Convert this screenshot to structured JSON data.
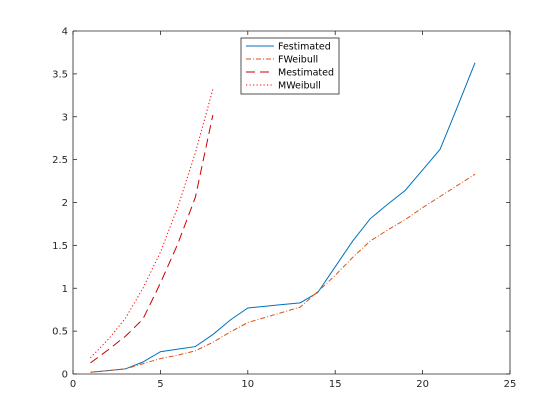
{
  "chart_data": {
    "type": "line",
    "title": "",
    "xlabel": "",
    "ylabel": "",
    "xlim": [
      0,
      25
    ],
    "ylim": [
      0,
      4
    ],
    "xticks": [
      0,
      5,
      10,
      15,
      20,
      25
    ],
    "yticks": [
      0,
      0.5,
      1,
      1.5,
      2,
      2.5,
      3,
      3.5,
      4
    ],
    "xtick_labels": [
      "0",
      "5",
      "10",
      "15",
      "20",
      "25"
    ],
    "ytick_labels": [
      "0",
      "0.5",
      "1",
      "1.5",
      "2",
      "2.5",
      "3",
      "3.5",
      "4"
    ],
    "grid": false,
    "legend_position": "top-center",
    "series": [
      {
        "name": "Festimated",
        "color": "#0072BD",
        "line_style": "solid",
        "x": [
          1,
          2,
          3,
          4,
          5,
          6,
          7,
          8,
          9,
          10,
          11,
          12,
          13,
          14,
          15,
          16,
          17,
          18,
          19,
          20,
          21,
          22,
          23
        ],
        "y": [
          0.02,
          0.04,
          0.06,
          0.14,
          0.26,
          0.29,
          0.32,
          0.46,
          0.63,
          0.77,
          0.79,
          0.81,
          0.83,
          0.95,
          1.25,
          1.55,
          1.81,
          1.98,
          2.14,
          2.38,
          2.62,
          3.12,
          3.63
        ]
      },
      {
        "name": "FWeibull",
        "color": "#D95319",
        "line_style": "dashdot",
        "x": [
          1,
          2,
          3,
          4,
          5,
          6,
          7,
          8,
          9,
          10,
          11,
          12,
          13,
          14,
          15,
          16,
          17,
          18,
          19,
          20,
          21,
          22,
          23
        ],
        "y": [
          0.02,
          0.04,
          0.06,
          0.12,
          0.18,
          0.22,
          0.27,
          0.37,
          0.49,
          0.6,
          0.66,
          0.72,
          0.78,
          0.96,
          1.15,
          1.36,
          1.55,
          1.68,
          1.8,
          1.94,
          2.07,
          2.2,
          2.33
        ]
      },
      {
        "name": "Mestimated",
        "color": "#CC0000",
        "line_style": "dashed",
        "x": [
          1,
          2,
          3,
          4,
          5,
          6,
          7,
          8
        ],
        "y": [
          0.13,
          0.28,
          0.44,
          0.64,
          1.06,
          1.52,
          2.06,
          3.02
        ]
      },
      {
        "name": "MWeibull",
        "color": "#FF0000",
        "line_style": "dotted",
        "x": [
          1,
          2,
          3,
          4,
          5,
          6,
          7,
          8
        ],
        "y": [
          0.19,
          0.4,
          0.65,
          1.0,
          1.42,
          1.95,
          2.58,
          3.32
        ]
      }
    ]
  }
}
